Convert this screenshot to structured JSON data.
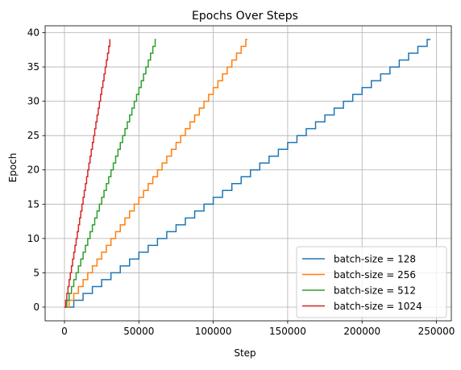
{
  "chart_data": {
    "type": "line",
    "step_style": "post",
    "title": "Epochs Over Steps",
    "xlabel": "Step",
    "ylabel": "Epoch",
    "xlim": [
      -13000,
      260000
    ],
    "ylim": [
      -2,
      41
    ],
    "xticks": [
      0,
      50000,
      100000,
      150000,
      200000,
      250000
    ],
    "xtick_labels": [
      "0",
      "50000",
      "100000",
      "150000",
      "200000",
      "250000"
    ],
    "yticks": [
      0,
      5,
      10,
      15,
      20,
      25,
      30,
      35,
      40
    ],
    "ytick_labels": [
      "0",
      "5",
      "10",
      "15",
      "20",
      "25",
      "30",
      "35",
      "40"
    ],
    "grid": true,
    "legend_position": "lower-right",
    "series": [
      {
        "name": "batch-size = 128",
        "color": "#1f77b4",
        "steps_per_epoch": 6250,
        "epoch_start": 0,
        "epoch_end": 39,
        "x_end": 246000
      },
      {
        "name": "batch-size = 256",
        "color": "#ff7f0e",
        "steps_per_epoch": 3125,
        "epoch_start": 0,
        "epoch_end": 39,
        "x_end": 123000
      },
      {
        "name": "batch-size = 512",
        "color": "#2ca02c",
        "steps_per_epoch": 1563,
        "epoch_start": 0,
        "epoch_end": 39,
        "x_end": 61500
      },
      {
        "name": "batch-size = 1024",
        "color": "#d62728",
        "steps_per_epoch": 782,
        "epoch_start": 0,
        "epoch_end": 39,
        "x_end": 30700
      }
    ]
  }
}
